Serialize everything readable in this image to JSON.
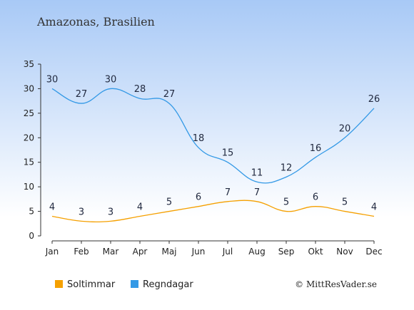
{
  "chart_data": {
    "type": "line",
    "title": "Amazonas, Brasilien",
    "categories": [
      "Jan",
      "Feb",
      "Mar",
      "Apr",
      "Maj",
      "Jun",
      "Jul",
      "Aug",
      "Sep",
      "Okt",
      "Nov",
      "Dec"
    ],
    "ylim": [
      0,
      35
    ],
    "yticks": [
      0,
      5,
      10,
      15,
      20,
      25,
      30,
      35
    ],
    "grid": false,
    "legend_position": "bottom",
    "series": [
      {
        "name": "Soltimmar",
        "color": "#f5a000",
        "values": [
          4,
          3,
          3,
          4,
          5,
          6,
          7,
          7,
          5,
          6,
          5,
          4
        ]
      },
      {
        "name": "Regndagar",
        "color": "#3399e6",
        "values": [
          30,
          27,
          30,
          28,
          27,
          18,
          15,
          11,
          12,
          16,
          20,
          26
        ]
      }
    ],
    "credit": "© MittResVader.se"
  }
}
